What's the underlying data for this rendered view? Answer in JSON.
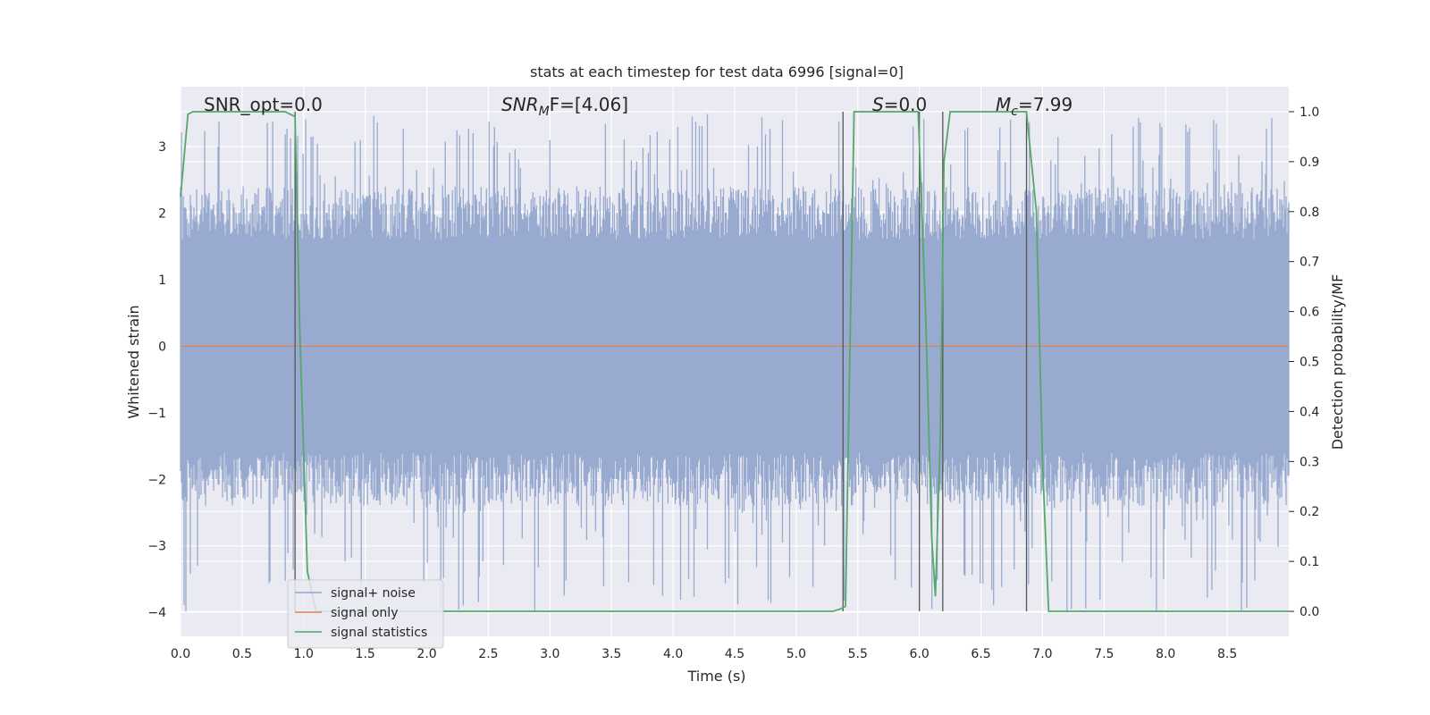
{
  "chart_data": {
    "type": "line",
    "title": "stats at each timestep for test data 6996 [signal=0]",
    "xlabel": "Time (s)",
    "ylabel": "Whitened strain",
    "y2label": "Detection probability/MF",
    "xlim": [
      0.0,
      9.0
    ],
    "ylim": [
      -4.36,
      3.9
    ],
    "y2lim": [
      -0.05,
      1.05
    ],
    "x_ticks": [
      "0.0",
      "0.5",
      "1.0",
      "1.5",
      "2.0",
      "2.5",
      "3.0",
      "3.5",
      "4.0",
      "4.5",
      "5.0",
      "5.5",
      "6.0",
      "6.5",
      "7.0",
      "7.5",
      "8.0",
      "8.5"
    ],
    "y_ticks": [
      "3",
      "2",
      "1",
      "0",
      "−1",
      "−2",
      "−3",
      "−4"
    ],
    "y2_ticks": [
      "1.0",
      "0.9",
      "0.8",
      "0.7",
      "0.6",
      "0.5",
      "0.4",
      "0.3",
      "0.2",
      "0.1",
      "0.0"
    ],
    "grid": true,
    "legend_position": "lower-left",
    "annotations": {
      "snr_opt": "SNR_opt=0.0",
      "snr_mf_main": "SNR",
      "snr_mf_sub": "M",
      "snr_mf_tail": "F=[4.06]",
      "s_main": "S",
      "s_tail": "=0.0",
      "mc_main": "M",
      "mc_sub": "c",
      "mc_tail": "=7.99"
    },
    "vertical_lines_x": [
      0.93,
      5.38,
      6.0,
      6.19,
      6.87
    ],
    "series": [
      {
        "name": "signal+ noise",
        "color": "#93a6cc",
        "description_range": [
          -4.0,
          3.5
        ]
      },
      {
        "name": "signal only",
        "color": "#dd8452",
        "values_constant": 0
      },
      {
        "name": "signal statistics",
        "color": "#55a868",
        "x": [
          0.0,
          0.06,
          0.1,
          0.18,
          0.5,
          0.85,
          0.93,
          0.97,
          1.03,
          1.1,
          1.2,
          5.3,
          5.36,
          5.4,
          5.47,
          5.99,
          6.05,
          6.1,
          6.13,
          6.17,
          6.2,
          6.25,
          6.3,
          6.8,
          6.87,
          6.95,
          7.0,
          7.05,
          9.0
        ],
        "values": [
          0.83,
          0.995,
          1.0,
          1.0,
          1.0,
          1.0,
          0.99,
          0.55,
          0.08,
          0.0,
          0.0,
          0.0,
          0.005,
          0.01,
          1.0,
          1.0,
          0.6,
          0.15,
          0.03,
          0.35,
          0.9,
          1.0,
          1.0,
          1.0,
          1.0,
          0.8,
          0.3,
          0.0,
          0.0
        ]
      }
    ]
  }
}
